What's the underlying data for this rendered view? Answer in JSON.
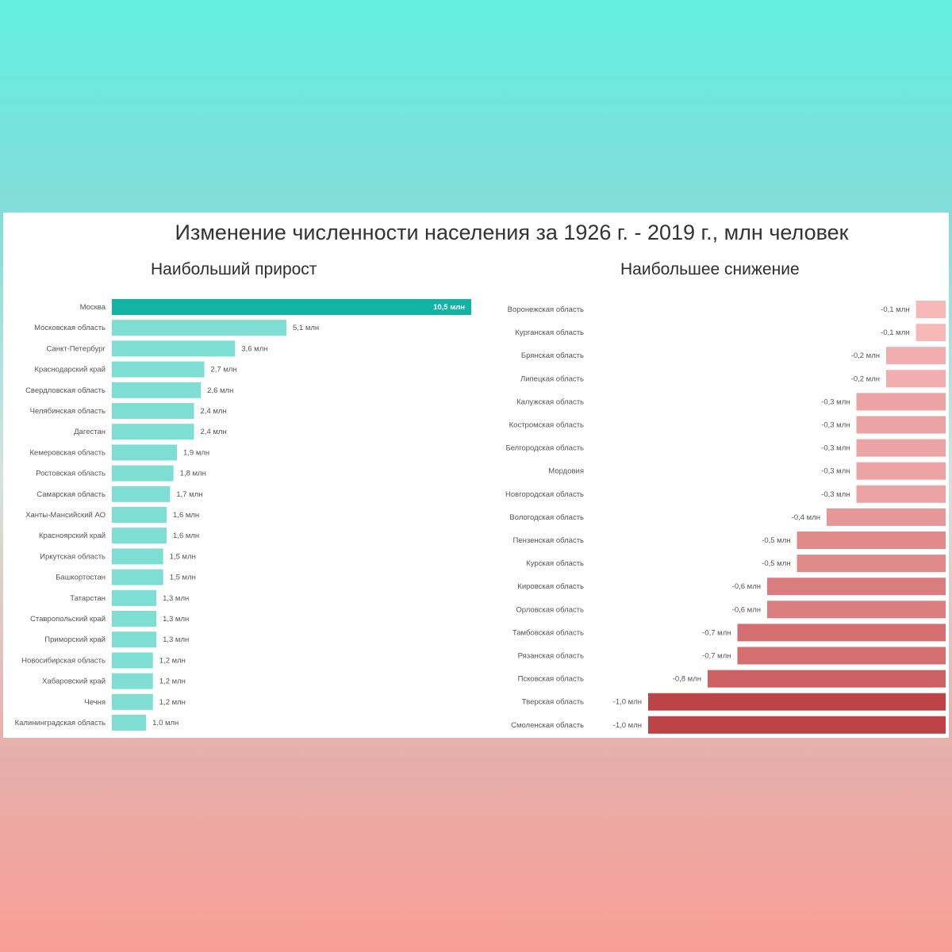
{
  "title": "Изменение численности населения за 1926 г. - 2019 г., млн человек",
  "colors": {
    "increase_strong": "#10b3a4",
    "increase": "#7fded3",
    "decrease_light": "#fbc0c0",
    "decrease_strong": "#bd4446"
  },
  "chart_data": [
    {
      "type": "bar",
      "orientation": "horizontal",
      "title": "Наибольший прирост",
      "categories": [
        "Москва",
        "Московская область",
        "Санкт-Петербург",
        "Краснодарский край",
        "Свердловская область",
        "Челябинская область",
        "Дагестан",
        "Кемеровская область",
        "Ростовская область",
        "Самарская область",
        "Ханты-Мансийский АО",
        "Красноярский край",
        "Иркутская область",
        "Башкортостан",
        "Татарстан",
        "Ставропольский край",
        "Приморский край",
        "Новосибирская область",
        "Хабаровский край",
        "Чечня",
        "Калининградская область"
      ],
      "values": [
        10.5,
        5.1,
        3.6,
        2.7,
        2.6,
        2.4,
        2.4,
        1.9,
        1.8,
        1.7,
        1.6,
        1.6,
        1.5,
        1.5,
        1.3,
        1.3,
        1.3,
        1.2,
        1.2,
        1.2,
        1.0
      ],
      "labels": [
        "10,5 млн",
        "5,1 млн",
        "3,6 млн",
        "2,7 млн",
        "2,6 млн",
        "2,4 млн",
        "2,4 млн",
        "1,9 млн",
        "1,8 млн",
        "1,7 млн",
        "1,6 млн",
        "1,6 млн",
        "1,5 млн",
        "1,5 млн",
        "1,3 млн",
        "1,3 млн",
        "1,3 млн",
        "1,2 млн",
        "1,2 млн",
        "1,2 млн",
        "1,0 млн"
      ],
      "grid": false,
      "legend": "none"
    },
    {
      "type": "bar",
      "orientation": "horizontal",
      "title": "Наибольшее снижение",
      "categories": [
        "Воронежская область",
        "Курганская область",
        "Брянская область",
        "Липецкая область",
        "Калужская область",
        "Костромская область",
        "Белгородская область",
        "Мордовия",
        "Новгородская область",
        "Вологодская область",
        "Пензенская область",
        "Курская область",
        "Кировская область",
        "Орловская область",
        "Тамбовская область",
        "Рязанская область",
        "Псковская область",
        "Тверская область",
        "Смоленская область"
      ],
      "values": [
        -0.1,
        -0.1,
        -0.2,
        -0.2,
        -0.3,
        -0.3,
        -0.3,
        -0.3,
        -0.3,
        -0.4,
        -0.5,
        -0.5,
        -0.6,
        -0.6,
        -0.7,
        -0.7,
        -0.8,
        -1.0,
        -1.0
      ],
      "labels": [
        "-0,1 млн",
        "-0,1 млн",
        "-0,2 млн",
        "-0,2 млн",
        "-0,3 млн",
        "-0,3 млн",
        "-0,3 млн",
        "-0,3 млн",
        "-0,3 млн",
        "-0,4 млн",
        "-0,5 млн",
        "-0,5 млн",
        "-0,6 млн",
        "-0,6 млн",
        "-0,7 млн",
        "-0,7 млн",
        "-0,8 млн",
        "-1,0 млн",
        "-1,0 млн"
      ],
      "grid": false,
      "legend": "none"
    }
  ]
}
